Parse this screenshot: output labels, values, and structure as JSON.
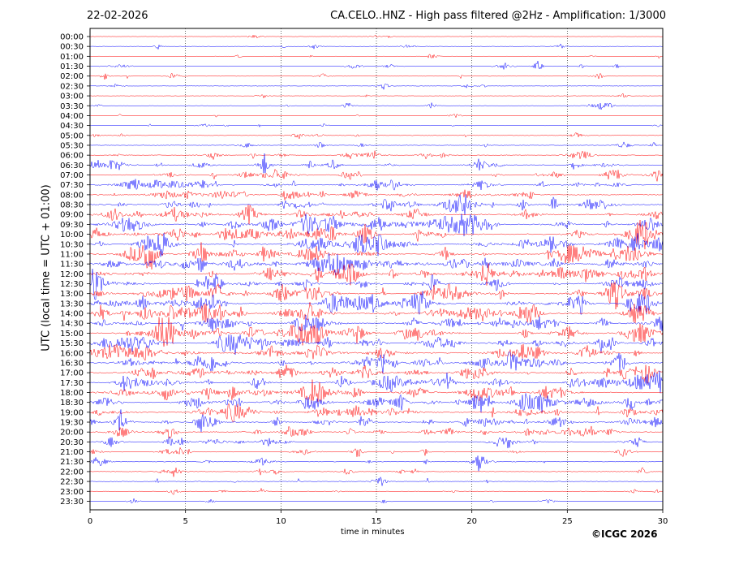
{
  "chart_data": {
    "type": "line",
    "title": "CA.CELO..HNZ - High pass filtered @2Hz - Amplification: 1/3000",
    "date": "22-02-2026",
    "xlabel": "time in minutes",
    "ylabel": "UTC (local time = UTC + 01:00)",
    "xlim": [
      0,
      30
    ],
    "x_ticks": [
      "0",
      "5",
      "10",
      "15",
      "20",
      "25",
      "30"
    ],
    "y_ticks": [
      "00:00",
      "00:30",
      "01:00",
      "01:30",
      "02:00",
      "02:30",
      "03:00",
      "03:30",
      "04:00",
      "04:30",
      "05:00",
      "05:30",
      "06:00",
      "06:30",
      "07:00",
      "07:30",
      "08:00",
      "08:30",
      "09:00",
      "09:30",
      "10:00",
      "10:30",
      "11:00",
      "11:30",
      "12:00",
      "12:30",
      "13:00",
      "13:30",
      "14:00",
      "14:30",
      "15:00",
      "15:30",
      "16:00",
      "16:30",
      "17:00",
      "17:30",
      "18:00",
      "18:30",
      "19:00",
      "19:30",
      "20:00",
      "20:30",
      "21:00",
      "21:30",
      "22:00",
      "22:30",
      "23:00",
      "23:30"
    ],
    "trace_colors": [
      "#ff0000",
      "#0000ff"
    ],
    "grid": "vertical dotted at 5-minute intervals",
    "activity": [
      0.05,
      0.12,
      0.15,
      0.2,
      0.12,
      0.08,
      0.1,
      0.15,
      0.08,
      0.15,
      0.2,
      0.2,
      0.3,
      0.45,
      0.5,
      0.55,
      0.6,
      0.65,
      0.7,
      0.85,
      0.8,
      0.8,
      0.85,
      0.85,
      0.8,
      0.8,
      0.85,
      0.9,
      0.85,
      0.8,
      0.9,
      0.8,
      0.85,
      0.8,
      0.75,
      0.8,
      0.75,
      0.8,
      0.75,
      0.65,
      0.55,
      0.45,
      0.35,
      0.3,
      0.25,
      0.2,
      0.12,
      0.05
    ]
  },
  "copyright": "©ICGC 2026"
}
